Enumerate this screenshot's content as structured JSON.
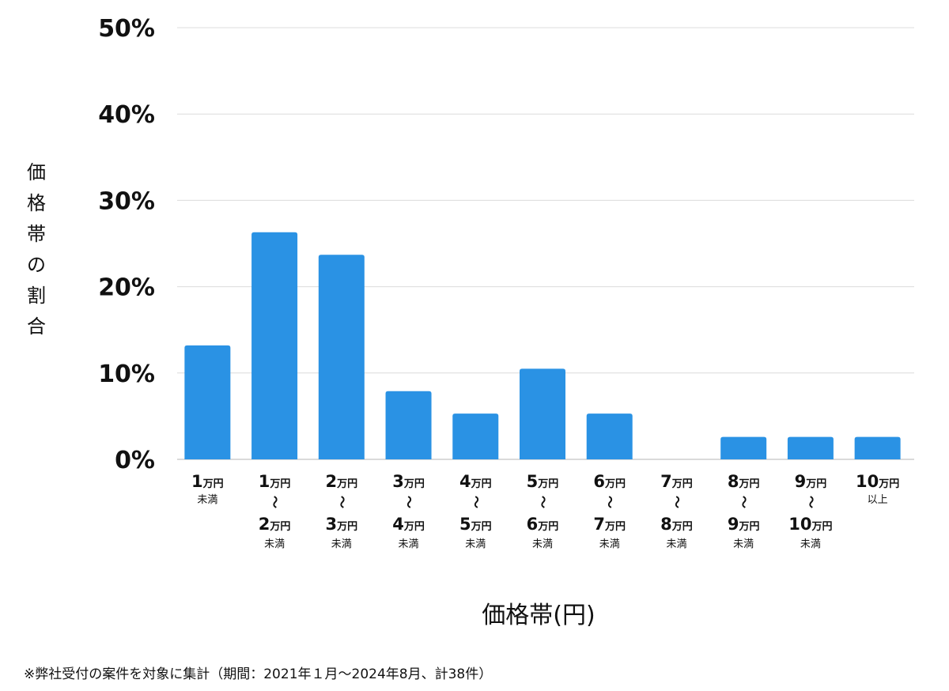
{
  "chart_data": {
    "type": "bar",
    "ylabel": "価格帯の割合",
    "xlabel": "価格帯(円)",
    "ylim": [
      0,
      50
    ],
    "yticks": [
      "0%",
      "10%",
      "20%",
      "30%",
      "40%",
      "50%"
    ],
    "grid": true,
    "bar_color": "#2a92e4",
    "categories": [
      {
        "lines": [
          {
            "num": "1",
            "unit": "万円"
          },
          {
            "small": "未満"
          }
        ]
      },
      {
        "lines": [
          {
            "num": "1",
            "unit": "万円"
          },
          {
            "tilde": "〜"
          },
          {
            "num": "2",
            "unit": "万円"
          },
          {
            "small": "未満"
          }
        ]
      },
      {
        "lines": [
          {
            "num": "2",
            "unit": "万円"
          },
          {
            "tilde": "〜"
          },
          {
            "num": "3",
            "unit": "万円"
          },
          {
            "small": "未満"
          }
        ]
      },
      {
        "lines": [
          {
            "num": "3",
            "unit": "万円"
          },
          {
            "tilde": "〜"
          },
          {
            "num": "4",
            "unit": "万円"
          },
          {
            "small": "未満"
          }
        ]
      },
      {
        "lines": [
          {
            "num": "4",
            "unit": "万円"
          },
          {
            "tilde": "〜"
          },
          {
            "num": "5",
            "unit": "万円"
          },
          {
            "small": "未満"
          }
        ]
      },
      {
        "lines": [
          {
            "num": "5",
            "unit": "万円"
          },
          {
            "tilde": "〜"
          },
          {
            "num": "6",
            "unit": "万円"
          },
          {
            "small": "未満"
          }
        ]
      },
      {
        "lines": [
          {
            "num": "6",
            "unit": "万円"
          },
          {
            "tilde": "〜"
          },
          {
            "num": "7",
            "unit": "万円"
          },
          {
            "small": "未満"
          }
        ]
      },
      {
        "lines": [
          {
            "num": "7",
            "unit": "万円"
          },
          {
            "tilde": "〜"
          },
          {
            "num": "8",
            "unit": "万円"
          },
          {
            "small": "未満"
          }
        ]
      },
      {
        "lines": [
          {
            "num": "8",
            "unit": "万円"
          },
          {
            "tilde": "〜"
          },
          {
            "num": "9",
            "unit": "万円"
          },
          {
            "small": "未満"
          }
        ]
      },
      {
        "lines": [
          {
            "num": "9",
            "unit": "万円"
          },
          {
            "tilde": "〜"
          },
          {
            "num": "10",
            "unit": "万円"
          },
          {
            "small": "未満"
          }
        ]
      },
      {
        "lines": [
          {
            "num": "10",
            "unit": "万円"
          },
          {
            "small": "以上"
          }
        ]
      }
    ],
    "values": [
      13.2,
      26.3,
      23.7,
      7.9,
      5.3,
      10.5,
      5.3,
      0,
      2.6,
      2.6,
      2.6
    ]
  },
  "footnote": "※弊社受付の案件を対象に集計（期間：2021年１月〜2024年8月、計38件）"
}
